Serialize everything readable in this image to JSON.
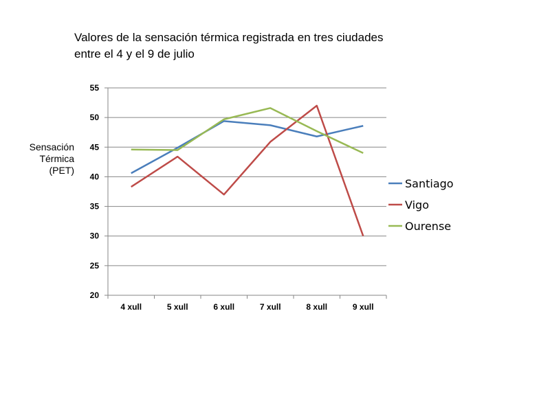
{
  "chart_data": {
    "type": "line",
    "title_lines": [
      "Valores de la sensación térmica registrada en tres ciudades",
      "entre el 4 y el 9 de julio"
    ],
    "ylabel_lines": [
      "Sensación",
      "Térmica",
      "(PET)"
    ],
    "xlabel": "",
    "categories": [
      "4 xull",
      "5 xull",
      "6 xull",
      "7 xull",
      "8 xull",
      "9 xull"
    ],
    "ylim": [
      20,
      55
    ],
    "yticks": [
      20,
      25,
      30,
      35,
      40,
      45,
      50,
      55
    ],
    "grid": true,
    "legend_position": "right",
    "series": [
      {
        "name": "Santiago",
        "color": "#4A7EBB",
        "values": [
          40.6,
          44.9,
          49.4,
          48.7,
          46.8,
          48.6
        ]
      },
      {
        "name": "Vigo",
        "color": "#BE4B48",
        "values": [
          38.3,
          43.4,
          37.0,
          45.9,
          52.0,
          30.0
        ]
      },
      {
        "name": "Ourense",
        "color": "#98B954",
        "values": [
          44.6,
          44.5,
          49.7,
          51.6,
          47.7,
          44.0
        ]
      }
    ]
  }
}
